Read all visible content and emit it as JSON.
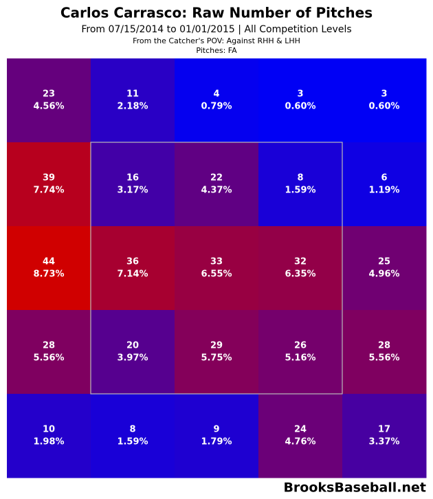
{
  "chart_data": {
    "type": "heatmap",
    "title": "Carlos Carrasco: Raw Number of Pitches",
    "subtitle": "From 07/15/2014 to 01/01/2015 | All Competition Levels",
    "notes": [
      "From the Catcher's POV:  Against RHH & LHH",
      "Pitches:  FA"
    ],
    "values": [
      [
        23,
        11,
        4,
        3,
        3
      ],
      [
        39,
        16,
        22,
        8,
        6
      ],
      [
        44,
        36,
        33,
        32,
        25
      ],
      [
        28,
        20,
        29,
        26,
        28
      ],
      [
        10,
        8,
        9,
        24,
        17
      ]
    ],
    "percents": [
      [
        4.56,
        2.18,
        0.79,
        0.6,
        0.6
      ],
      [
        7.74,
        3.17,
        4.37,
        1.59,
        1.19
      ],
      [
        8.73,
        7.14,
        6.55,
        6.35,
        4.96
      ],
      [
        5.56,
        3.97,
        5.75,
        5.16,
        5.56
      ],
      [
        1.98,
        1.59,
        1.79,
        4.76,
        3.37
      ]
    ],
    "percent_labels": [
      [
        "4.56%",
        "2.18%",
        "0.79%",
        "0.60%",
        "0.60%"
      ],
      [
        "7.74%",
        "3.17%",
        "4.37%",
        "1.59%",
        "1.19%"
      ],
      [
        "8.73%",
        "7.14%",
        "6.55%",
        "6.35%",
        "4.96%"
      ],
      [
        "5.56%",
        "3.97%",
        "5.75%",
        "5.16%",
        "5.56%"
      ],
      [
        "1.98%",
        "1.59%",
        "1.79%",
        "4.76%",
        "3.37%"
      ]
    ],
    "color_low": "#0000f5",
    "color_high": "#d00000",
    "source": "BrooksBaseball.net"
  }
}
